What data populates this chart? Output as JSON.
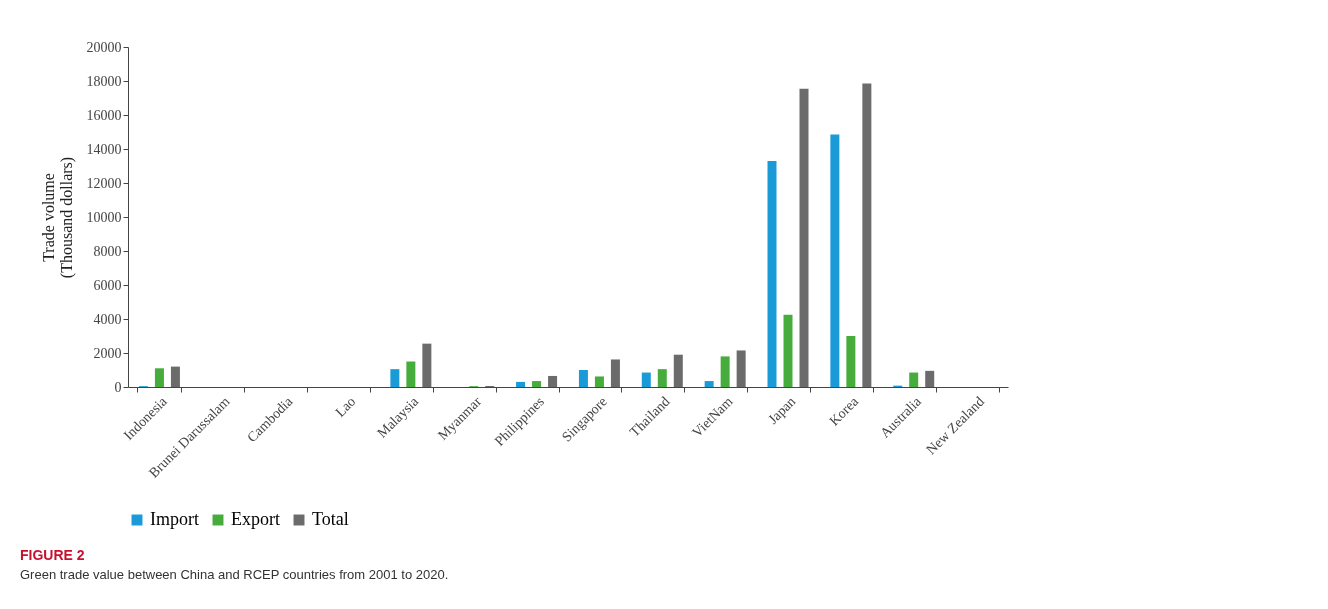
{
  "chart_data": {
    "type": "bar",
    "title": "FIGURE 2",
    "subtitle": "Green trade value between China and RCEP countries from 2001 to 2020.",
    "ylabel": "Trade volume\n(Thousand dollars)",
    "categories": [
      "Indonesia",
      "Brunei Darussalam",
      "Cambodia",
      "Lao",
      "Malaysia",
      "Myanmar",
      "Philippines",
      "Singapore",
      "Thailand",
      "VietNam",
      "Japan",
      "Korea",
      "Australia",
      "New Zealand"
    ],
    "series": [
      {
        "name": "Import",
        "color": "#1a9bd7",
        "values": [
          50,
          0,
          0,
          0,
          1050,
          0,
          300,
          1000,
          850,
          350,
          13300,
          14850,
          80,
          0
        ]
      },
      {
        "name": "Export",
        "color": "#46ad3c",
        "values": [
          1100,
          0,
          0,
          null,
          1500,
          50,
          350,
          620,
          1050,
          1800,
          4250,
          3000,
          850,
          0
        ]
      },
      {
        "name": "Total",
        "color": "#6b6b6b",
        "values": [
          1200,
          0,
          null,
          null,
          2550,
          60,
          650,
          1620,
          1900,
          2150,
          17550,
          17850,
          950,
          0
        ]
      }
    ],
    "ylim": [
      0,
      20000
    ],
    "yticks": [
      0,
      2000,
      4000,
      6000,
      8000,
      10000,
      12000,
      14000,
      16000,
      18000,
      20000
    ],
    "grid": false,
    "legend": "bottom"
  }
}
